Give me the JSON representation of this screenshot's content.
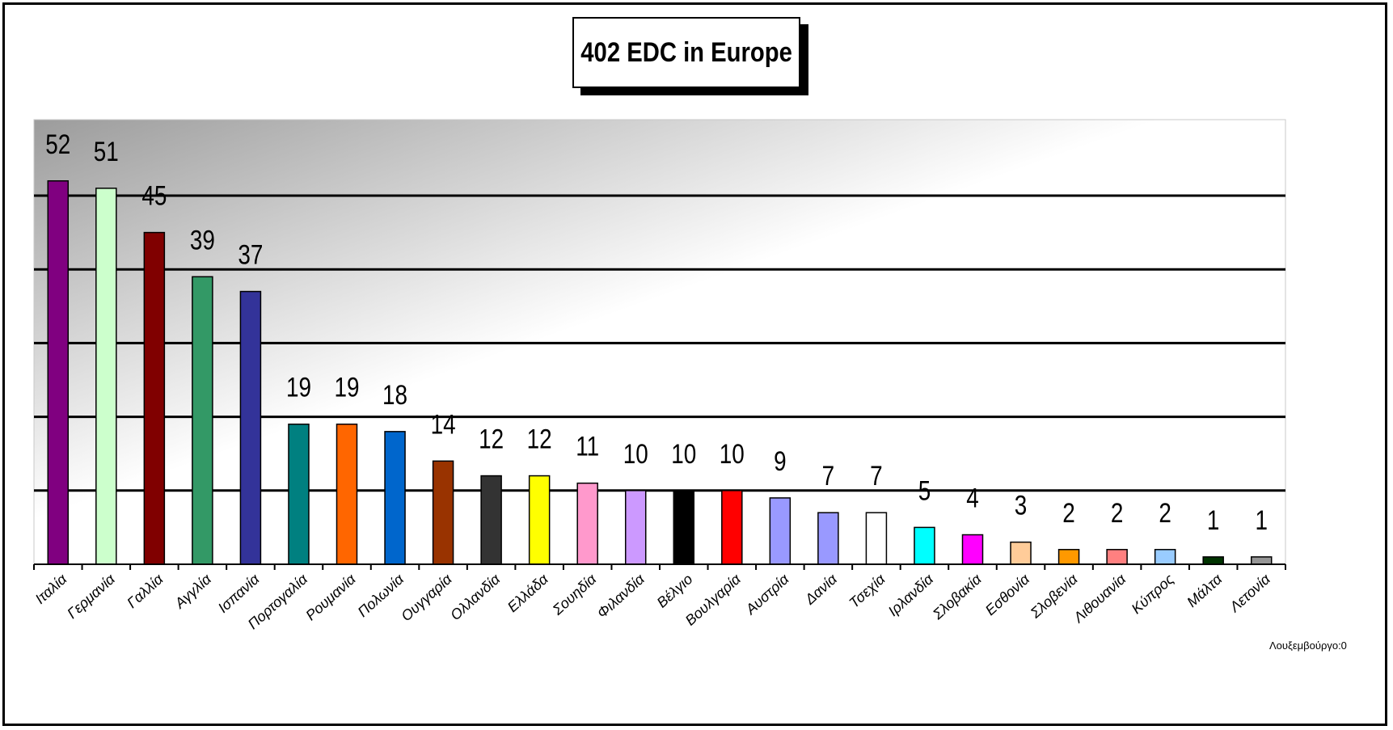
{
  "chart_data": {
    "type": "bar",
    "title": "402 EDC in Europe",
    "xlabel": "",
    "ylabel": "",
    "ylim": [
      0,
      54
    ],
    "grid": true,
    "gridlines": [
      10,
      20,
      30,
      40,
      50
    ],
    "categories": [
      "Ιταλία",
      "Γερμανία",
      "Γαλλία",
      "Αγγλία",
      "Ισπανία",
      "Πορτογαλία",
      "Ρουμανία",
      "Πολωνία",
      "Ουγγαρία",
      "Ολλανδία",
      "Ελλάδα",
      "Σουηδία",
      "Φιλανδία",
      "Βέλγιο",
      "Βουλγαρία",
      "Αυστρία",
      "Δανία",
      "Τσεχία",
      "Ιρλανδία",
      "Σλοβακία",
      "Εσθονία",
      "Σλοβενία",
      "Λιθουανία",
      "Κύπρος",
      "Μάλτα",
      "Λετονία"
    ],
    "values": [
      52,
      51,
      45,
      39,
      37,
      19,
      19,
      18,
      14,
      12,
      12,
      11,
      10,
      10,
      10,
      9,
      7,
      7,
      5,
      4,
      3,
      2,
      2,
      2,
      1,
      1
    ],
    "value_labels": [
      "52",
      "51",
      "45",
      "39",
      "37",
      "19",
      "19",
      "18",
      "14",
      "12",
      "12",
      "11",
      "10",
      "10",
      "10",
      "9",
      "7",
      "7",
      "5",
      "4",
      "3",
      "2",
      "2",
      "2",
      "1",
      "1"
    ],
    "colors": [
      "#800080",
      "#CCFFCC",
      "#800000",
      "#339966",
      "#333399",
      "#008080",
      "#FF6600",
      "#0066CC",
      "#993300",
      "#333333",
      "#FFFF00",
      "#FF99CC",
      "#CC99FF",
      "#000000",
      "#FF0000",
      "#9999FF",
      "#9999FF",
      "#FFFFFF",
      "#00FFFF",
      "#FF00FF",
      "#FFCC99",
      "#FF9900",
      "#FF8080",
      "#99CCFF",
      "#003300",
      "#969696"
    ],
    "footnote": "Λουξεμβούργο:0"
  }
}
